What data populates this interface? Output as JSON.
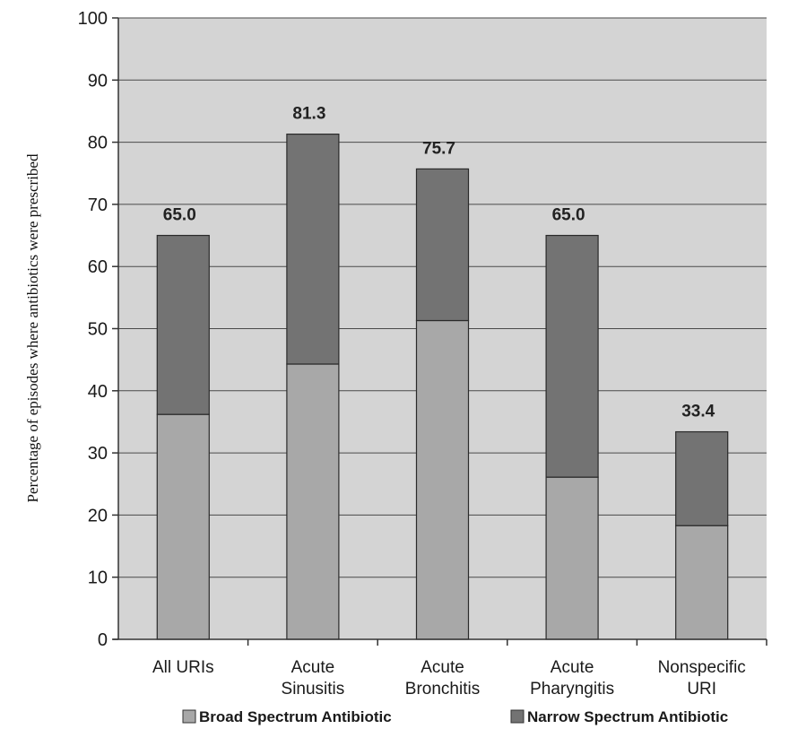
{
  "chart_data": {
    "type": "bar",
    "stacked": true,
    "ylabel": "Percentage of episodes where antibiotics were prescribed",
    "ylim": [
      0,
      100
    ],
    "yticks": [
      "0",
      "10",
      "20",
      "30",
      "40",
      "50",
      "60",
      "70",
      "80",
      "90",
      "100"
    ],
    "categories": [
      [
        "All URIs"
      ],
      [
        "Acute",
        "Sinusitis"
      ],
      [
        "Acute",
        "Bronchitis"
      ],
      [
        "Acute",
        "Pharyngitis"
      ],
      [
        "Nonspecific",
        "URI"
      ]
    ],
    "series": [
      {
        "name": "Broad Spectrum Antibiotic",
        "values": [
          36.2,
          44.3,
          51.3,
          26.1,
          18.3
        ],
        "color": "#a8a8a8"
      },
      {
        "name": "Narrow Spectrum Antibiotic",
        "values": [
          28.8,
          37.0,
          24.4,
          38.9,
          15.1
        ],
        "color": "#737373"
      }
    ],
    "totals": [
      "65.0",
      "81.3",
      "75.7",
      "65.0",
      "33.4"
    ],
    "grid": true,
    "legend_position": "bottom",
    "plot_background": "#d4d4d4"
  }
}
